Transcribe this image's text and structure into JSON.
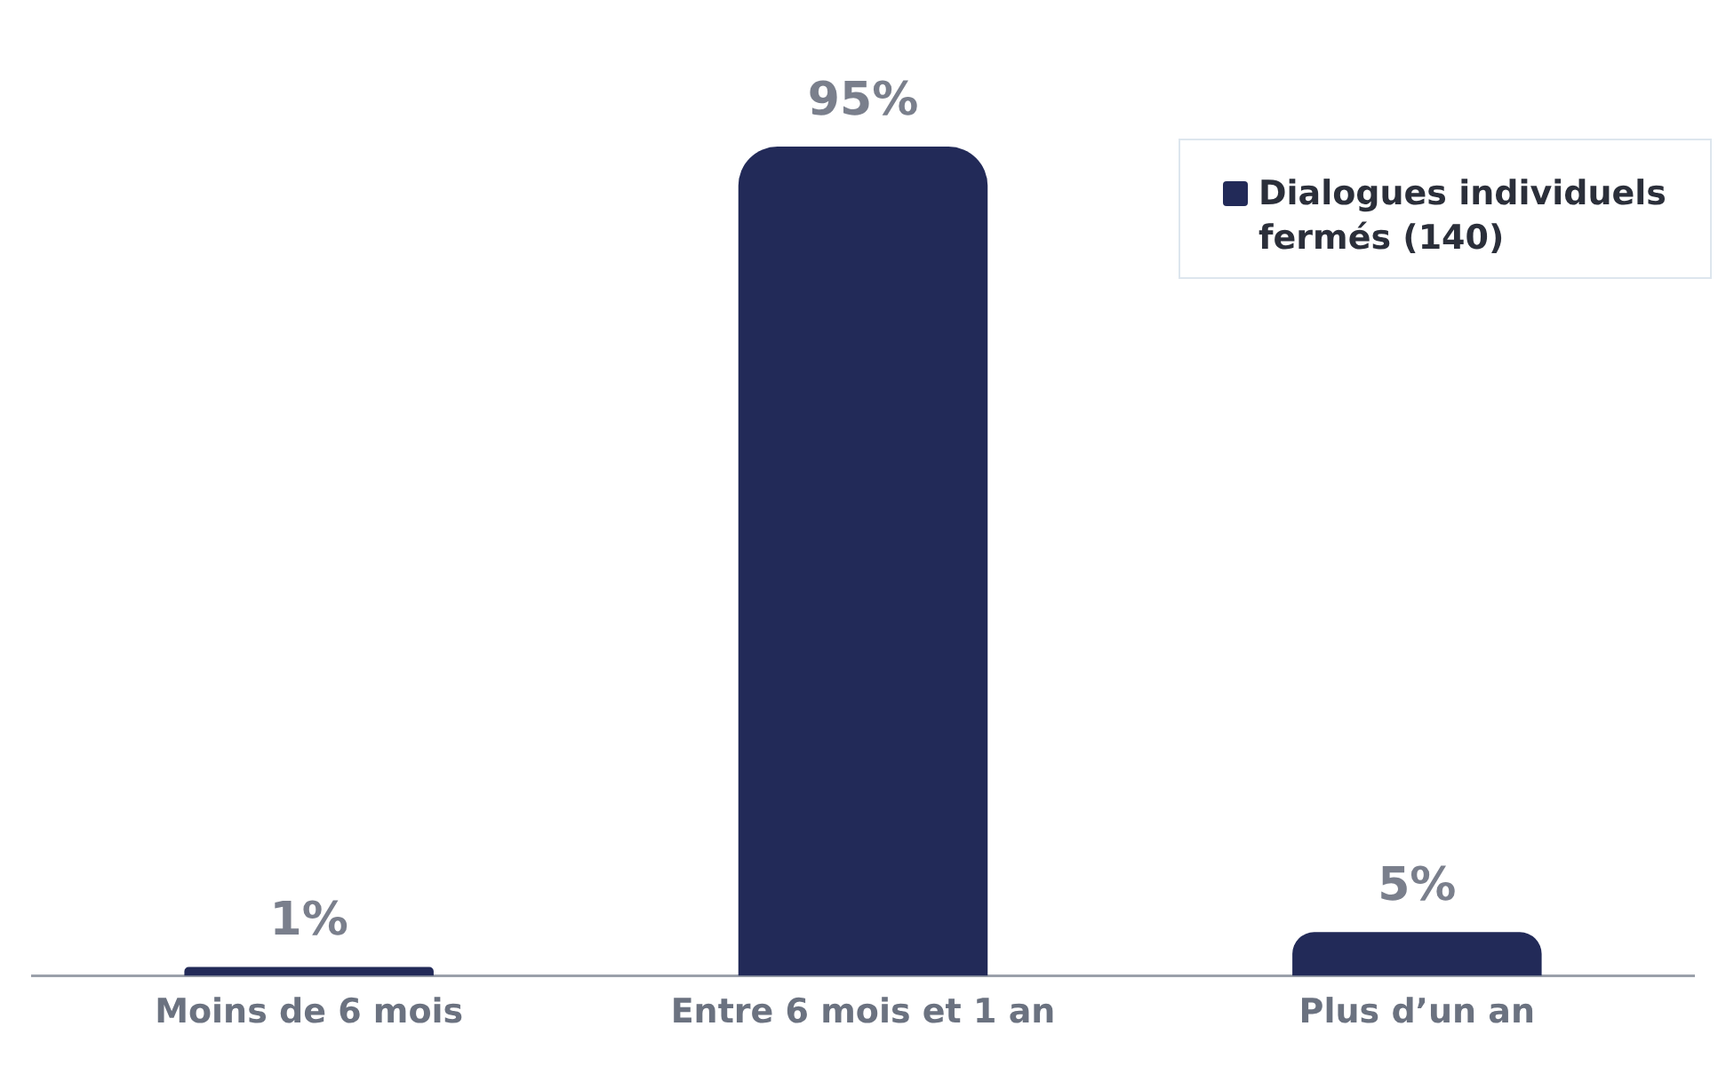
{
  "chart_data": {
    "type": "bar",
    "categories": [
      "Moins de 6 mois",
      "Entre 6 mois et 1 an",
      "Plus d’un an"
    ],
    "series": [
      {
        "name": "Dialogues individuels fermés (140)",
        "color": "#222a58",
        "values": [
          1,
          95,
          5
        ],
        "value_labels": [
          "1%",
          "95%",
          "5%"
        ]
      }
    ],
    "legend": "top right"
  }
}
